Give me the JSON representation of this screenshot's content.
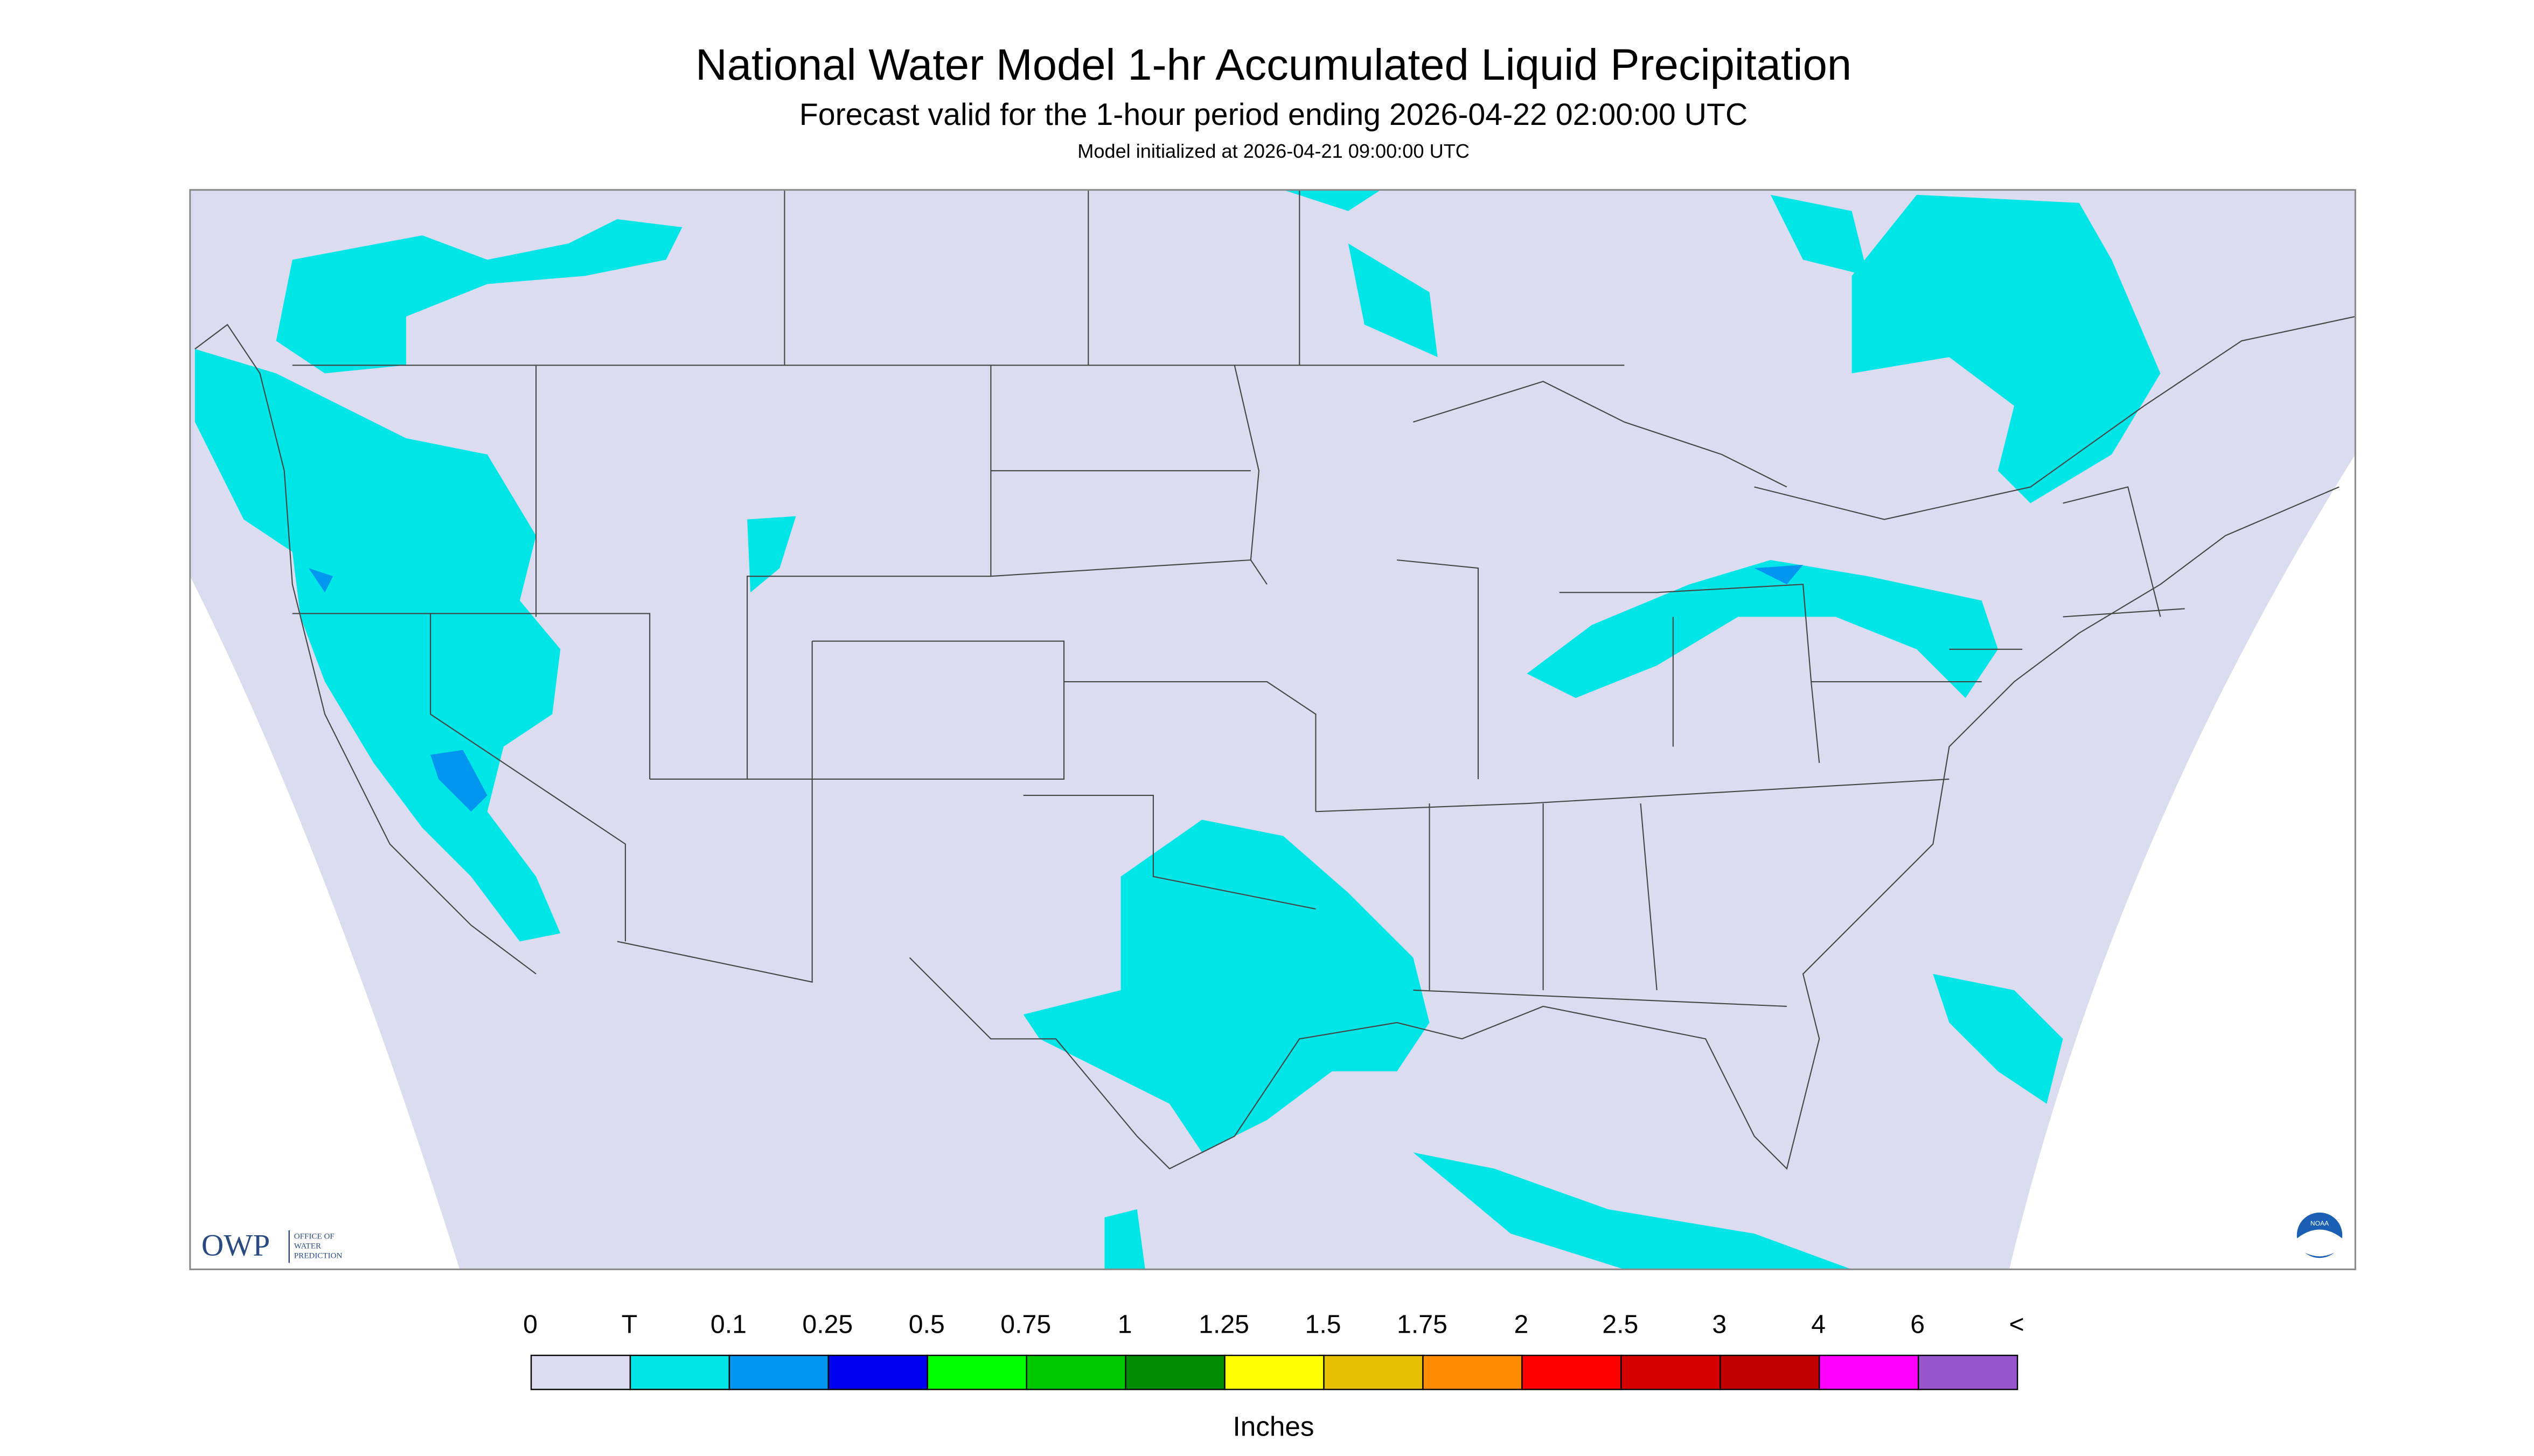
{
  "header": {
    "title": "National Water Model 1-hr Accumulated Liquid Precipitation",
    "subtitle": "Forecast valid for the 1-hour period ending 2026-04-22 02:00:00 UTC",
    "init": "Model initialized at 2026-04-21 09:00:00 UTC"
  },
  "logos": {
    "owp": "OWP",
    "owp_lines": [
      "OFFICE OF",
      "WATER",
      "PREDICTION"
    ],
    "noaa": "NOAA"
  },
  "legend": {
    "labels": [
      "0",
      "T",
      "0.1",
      "0.25",
      "0.5",
      "0.75",
      "1",
      "1.25",
      "1.5",
      "1.75",
      "2",
      "2.5",
      "3",
      "4",
      "6",
      "<"
    ],
    "colors": [
      "#dcdcf0",
      "#00e6e6",
      "#0096f0",
      "#0000f0",
      "#00ff00",
      "#00c800",
      "#008c00",
      "#ffff00",
      "#e6c000",
      "#ff8c00",
      "#ff0000",
      "#d70000",
      "#c00000",
      "#ff00ff",
      "#9955cc"
    ],
    "unit": "Inches"
  }
}
